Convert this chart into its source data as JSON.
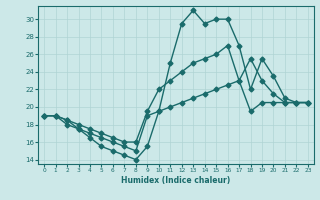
{
  "xlabel": "Humidex (Indice chaleur)",
  "bg_color": "#cce8e8",
  "line_color": "#1a6b6b",
  "grid_color": "#b0d4d4",
  "xlim": [
    -0.5,
    23.5
  ],
  "ylim": [
    13.5,
    31.5
  ],
  "xticks": [
    0,
    1,
    2,
    3,
    4,
    5,
    6,
    7,
    8,
    9,
    10,
    11,
    12,
    13,
    14,
    15,
    16,
    17,
    18,
    19,
    20,
    21,
    22,
    23
  ],
  "yticks": [
    14,
    16,
    18,
    20,
    22,
    24,
    26,
    28,
    30
  ],
  "curve1_x": [
    0,
    1,
    2,
    3,
    4,
    5,
    6,
    7,
    8,
    9,
    10,
    11,
    12,
    13,
    14,
    15,
    16,
    17,
    18,
    19,
    20,
    21,
    22,
    23
  ],
  "curve1_y": [
    19.0,
    19.0,
    18.0,
    17.5,
    16.5,
    15.5,
    15.0,
    14.5,
    14.0,
    15.5,
    19.5,
    25.0,
    29.5,
    31.0,
    29.5,
    30.0,
    30.0,
    27.0,
    22.0,
    25.5,
    23.5,
    21.0,
    20.5,
    20.5
  ],
  "curve2_x": [
    0,
    1,
    2,
    3,
    4,
    5,
    6,
    7,
    8,
    9,
    10,
    11,
    12,
    13,
    14,
    15,
    16,
    17,
    18,
    19,
    20,
    21,
    22,
    23
  ],
  "curve2_y": [
    19.0,
    19.0,
    18.5,
    18.0,
    17.5,
    17.0,
    16.5,
    16.0,
    16.0,
    19.5,
    22.0,
    23.0,
    24.0,
    25.0,
    25.5,
    26.0,
    27.0,
    23.0,
    25.5,
    23.0,
    21.5,
    20.5,
    20.5,
    20.5
  ],
  "curve3_x": [
    0,
    1,
    2,
    3,
    4,
    5,
    6,
    7,
    8,
    9,
    10,
    11,
    12,
    13,
    14,
    15,
    16,
    17,
    18,
    19,
    20,
    21,
    22,
    23
  ],
  "curve3_y": [
    19.0,
    19.0,
    18.5,
    17.5,
    17.0,
    16.5,
    16.0,
    15.5,
    15.0,
    19.0,
    19.5,
    20.0,
    20.5,
    21.0,
    21.5,
    22.0,
    22.5,
    23.0,
    19.5,
    20.5,
    20.5,
    20.5,
    20.5,
    20.5
  ],
  "marker_size": 2.5,
  "line_width": 1.0
}
